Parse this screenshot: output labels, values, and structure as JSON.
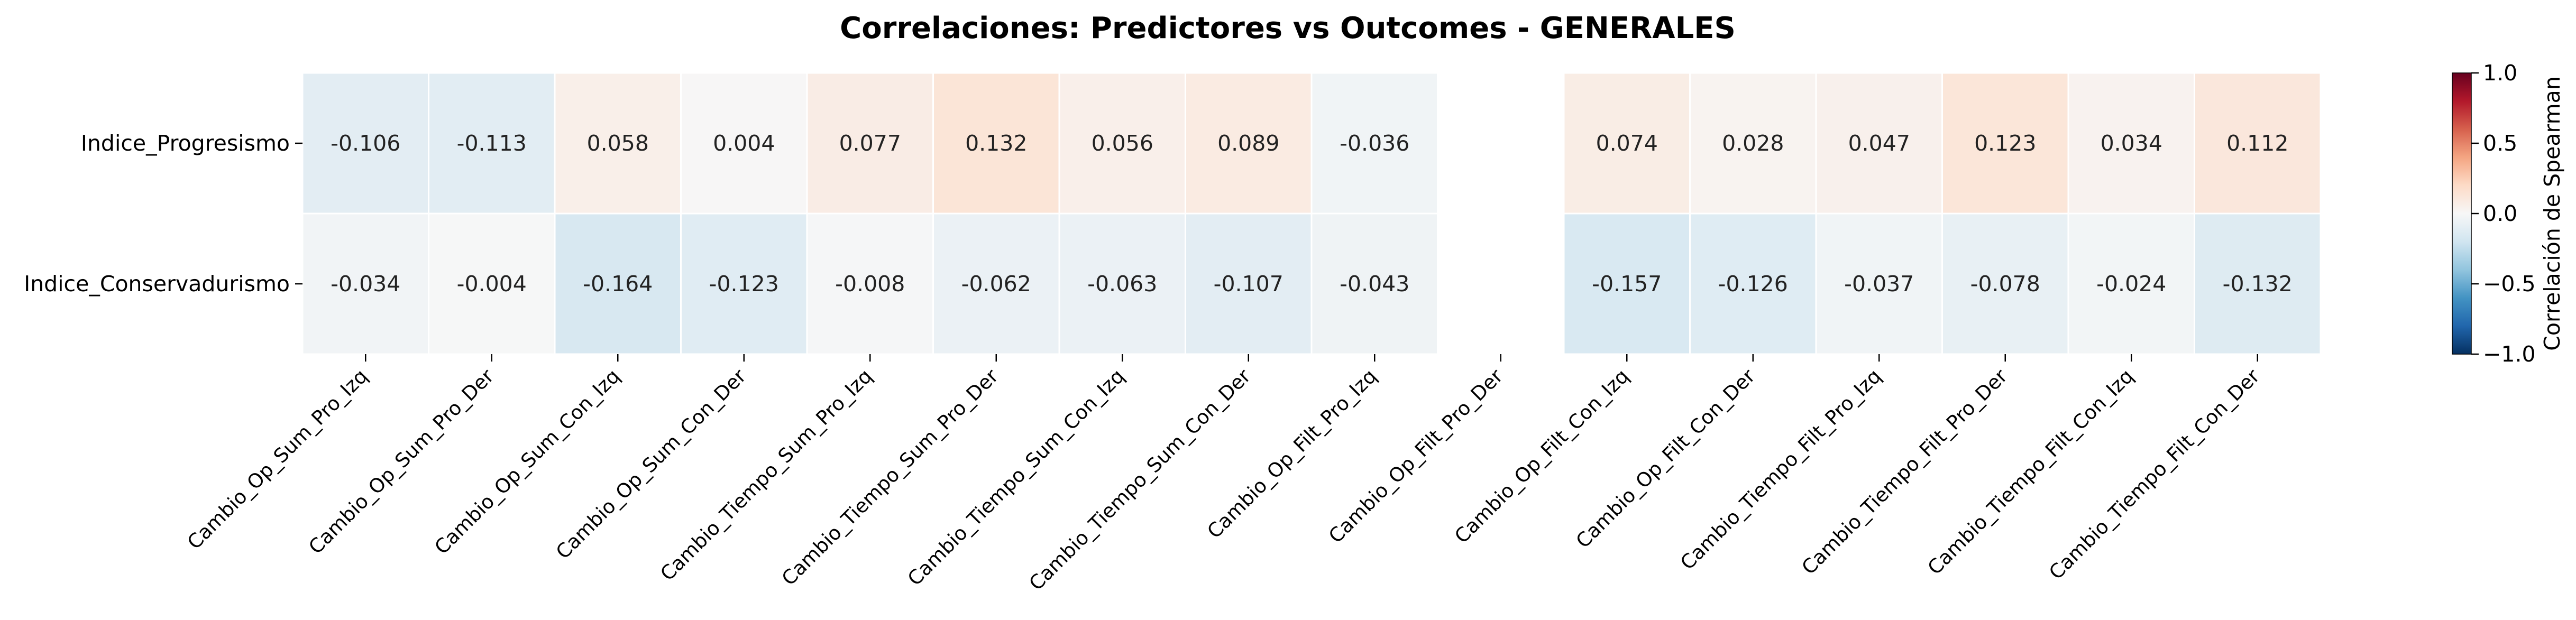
{
  "chart_data": {
    "type": "heatmap",
    "title": "Correlaciones: Predictores vs Outcomes - GENERALES",
    "rows": [
      "Indice_Progresismo",
      "Indice_Conservadurismo"
    ],
    "columns": [
      "Cambio_Op_Sum_Pro_Izq",
      "Cambio_Op_Sum_Pro_Der",
      "Cambio_Op_Sum_Con_Izq",
      "Cambio_Op_Sum_Con_Der",
      "Cambio_Tiempo_Sum_Pro_Izq",
      "Cambio_Tiempo_Sum_Pro_Der",
      "Cambio_Tiempo_Sum_Con_Izq",
      "Cambio_Tiempo_Sum_Con_Der",
      "Cambio_Op_Filt_Pro_Izq",
      "Cambio_Op_Filt_Pro_Der",
      "Cambio_Op_Filt_Con_Izq",
      "Cambio_Op_Filt_Con_Der",
      "Cambio_Tiempo_Filt_Pro_Izq",
      "Cambio_Tiempo_Filt_Pro_Der",
      "Cambio_Tiempo_Filt_Con_Izq",
      "Cambio_Tiempo_Filt_Con_Der"
    ],
    "values": [
      [
        -0.106,
        -0.113,
        0.058,
        0.004,
        0.077,
        0.132,
        0.056,
        0.089,
        -0.036,
        null,
        0.074,
        0.028,
        0.047,
        0.123,
        0.034,
        0.112
      ],
      [
        -0.034,
        -0.004,
        -0.164,
        -0.123,
        -0.008,
        -0.062,
        -0.063,
        -0.107,
        -0.043,
        null,
        -0.157,
        -0.126,
        -0.037,
        -0.078,
        -0.024,
        -0.132
      ]
    ],
    "colorbar": {
      "label": "Correlación de Spearman",
      "range": [
        -1.0,
        1.0
      ],
      "ticks": [
        "1.0",
        "0.5",
        "0.0",
        "−0.5",
        "−1.0"
      ],
      "tick_values": [
        1.0,
        0.5,
        0.0,
        -0.5,
        -1.0
      ],
      "colormap": "RdBu_r"
    },
    "cell_border_color": "#ffffff"
  }
}
